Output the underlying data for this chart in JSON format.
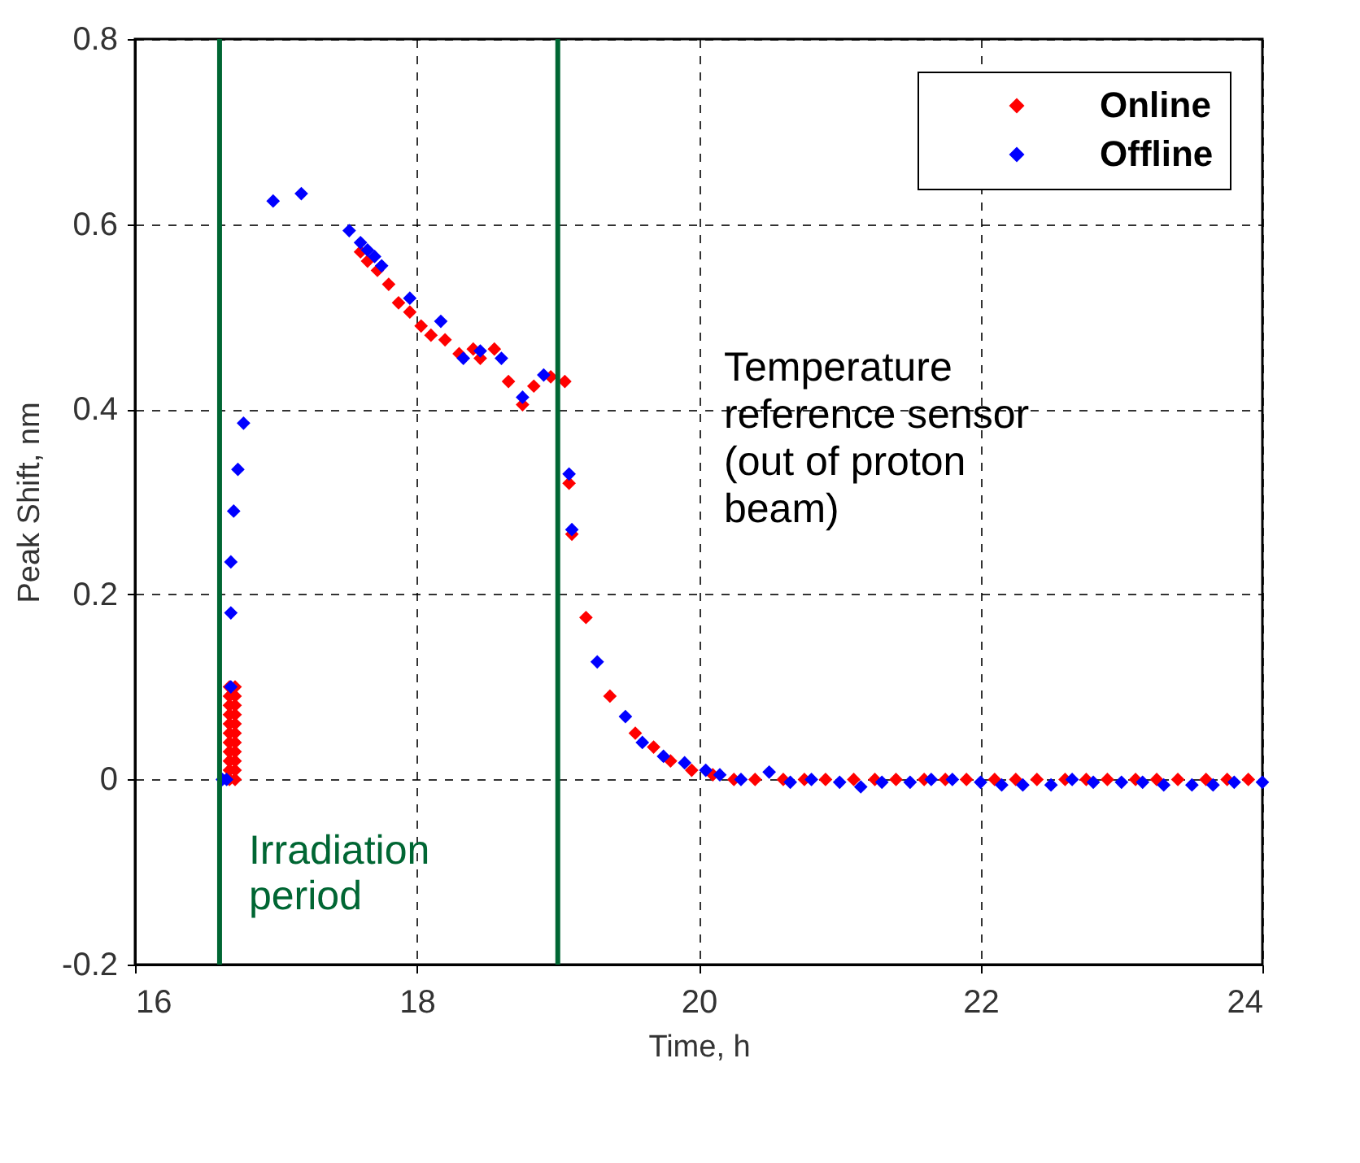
{
  "chart_data": {
    "type": "scatter",
    "xlabel": "Time, h",
    "ylabel": "Peak Shift, nm",
    "xlim": [
      16,
      24
    ],
    "ylim": [
      -0.2,
      0.8
    ],
    "xticks": [
      16,
      18,
      20,
      22,
      24
    ],
    "yticks": [
      -0.2,
      0,
      0.2,
      0.4,
      0.6,
      0.8
    ],
    "grid": true,
    "legend": "top right",
    "marker": "diamond",
    "annotations": [
      "Temperature reference sensor (out of proton beam)"
    ],
    "ref_lines": [
      {
        "axis": "x",
        "value": 16.6,
        "label": "Irradiation period",
        "color": "#006633"
      },
      {
        "axis": "x",
        "value": 19.0,
        "color": "#006633"
      }
    ],
    "series": [
      {
        "name": "Online",
        "color": "#ff0000",
        "x": [
          16.67,
          16.67,
          16.67,
          16.67,
          16.67,
          16.67,
          16.67,
          16.67,
          16.67,
          16.67,
          16.67,
          16.71,
          16.71,
          16.71,
          16.71,
          16.71,
          16.71,
          16.71,
          16.71,
          16.71,
          16.71,
          16.71,
          17.6,
          17.65,
          17.72,
          17.8,
          17.87,
          17.95,
          18.03,
          18.1,
          18.2,
          18.3,
          18.4,
          18.45,
          18.55,
          18.65,
          18.75,
          18.83,
          18.95,
          19.05,
          19.08,
          19.1,
          19.2,
          19.37,
          19.55,
          19.68,
          19.8,
          19.95,
          20.1,
          20.25,
          20.4,
          20.6,
          20.75,
          20.9,
          21.1,
          21.25,
          21.4,
          21.6,
          21.75,
          21.9,
          22.1,
          22.25,
          22.4,
          22.6,
          22.75,
          22.9,
          23.1,
          23.25,
          23.4,
          23.6,
          23.75,
          23.9
        ],
        "values": [
          0,
          0.01,
          0.02,
          0.03,
          0.04,
          0.05,
          0.06,
          0.07,
          0.08,
          0.09,
          0.1,
          0,
          0.01,
          0.02,
          0.03,
          0.04,
          0.05,
          0.06,
          0.07,
          0.08,
          0.09,
          0.1,
          0.57,
          0.56,
          0.55,
          0.535,
          0.515,
          0.505,
          0.49,
          0.48,
          0.475,
          0.46,
          0.465,
          0.455,
          0.465,
          0.43,
          0.405,
          0.425,
          0.435,
          0.43,
          0.32,
          0.265,
          0.175,
          0.09,
          0.05,
          0.035,
          0.02,
          0.01,
          0.005,
          0,
          0,
          0,
          0,
          0,
          0,
          0,
          0,
          0,
          0,
          0,
          0,
          0,
          0,
          0,
          0,
          0,
          0,
          0,
          0,
          0,
          0,
          0
        ]
      },
      {
        "name": "Offline",
        "color": "#0000ff",
        "x": [
          16.62,
          16.65,
          16.68,
          16.68,
          16.68,
          16.7,
          16.73,
          16.77,
          16.98,
          17.18,
          17.52,
          17.6,
          17.65,
          17.7,
          17.75,
          17.95,
          18.17,
          18.33,
          18.45,
          18.6,
          18.75,
          18.9,
          19.08,
          19.1,
          19.28,
          19.48,
          19.6,
          19.75,
          19.9,
          20.05,
          20.15,
          20.3,
          20.5,
          20.65,
          20.8,
          21.0,
          21.15,
          21.3,
          21.5,
          21.65,
          21.8,
          22.0,
          22.15,
          22.3,
          22.5,
          22.65,
          22.8,
          23.0,
          23.15,
          23.3,
          23.5,
          23.65,
          23.8,
          24.0
        ],
        "values": [
          0,
          0,
          0.1,
          0.18,
          0.235,
          0.29,
          0.335,
          0.385,
          0.625,
          0.633,
          0.593,
          0.58,
          0.572,
          0.565,
          0.555,
          0.52,
          0.495,
          0.455,
          0.463,
          0.455,
          0.413,
          0.437,
          0.33,
          0.27,
          0.127,
          0.068,
          0.04,
          0.025,
          0.018,
          0.01,
          0.005,
          0,
          0.008,
          -0.003,
          0,
          -0.003,
          -0.008,
          -0.003,
          -0.003,
          0,
          0,
          -0.003,
          -0.006,
          -0.006,
          -0.006,
          0,
          -0.003,
          -0.003,
          -0.003,
          -0.006,
          -0.006,
          -0.006,
          -0.003,
          -0.003
        ]
      }
    ]
  }
}
